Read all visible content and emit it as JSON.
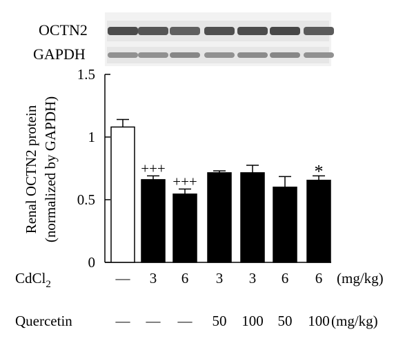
{
  "blot": {
    "rows": [
      {
        "label": "OCTN2",
        "intensity": [
          0.9,
          0.85,
          0.8,
          0.88,
          0.9,
          0.92,
          0.82
        ]
      },
      {
        "label": "GAPDH",
        "intensity": [
          0.55,
          0.55,
          0.6,
          0.55,
          0.58,
          0.6,
          0.55
        ]
      }
    ]
  },
  "chart_data": {
    "type": "bar",
    "ylabel_line1": "Renal OCTN2 protein",
    "ylabel_line2": "(normalized by GAPDH)",
    "ylim": [
      0,
      1.5
    ],
    "yticks": [
      "0",
      "0.5",
      "1",
      "1.5"
    ],
    "ytick_values": [
      0,
      0.5,
      1,
      1.5
    ],
    "bars": [
      {
        "value": 1.08,
        "error": 0.06,
        "fill": "white",
        "annotation": ""
      },
      {
        "value": 0.66,
        "error": 0.03,
        "fill": "black",
        "annotation": "+++"
      },
      {
        "value": 0.545,
        "error": 0.04,
        "fill": "black",
        "annotation": "+++"
      },
      {
        "value": 0.715,
        "error": 0.015,
        "fill": "black",
        "annotation": ""
      },
      {
        "value": 0.715,
        "error": 0.06,
        "fill": "black",
        "annotation": ""
      },
      {
        "value": 0.6,
        "error": 0.085,
        "fill": "black",
        "annotation": ""
      },
      {
        "value": 0.655,
        "error": 0.035,
        "fill": "black",
        "annotation": "*"
      }
    ],
    "cdcl2": {
      "label_main": "CdCl",
      "label_sub": "2",
      "values": [
        "—",
        "3",
        "6",
        "3",
        "3",
        "6",
        "6"
      ],
      "unit": "(mg/kg)"
    },
    "quercetin": {
      "label": "Quercetin",
      "values": [
        "—",
        "—",
        "—",
        "50",
        "100",
        "50",
        "100"
      ],
      "unit": "(mg/kg)"
    }
  }
}
